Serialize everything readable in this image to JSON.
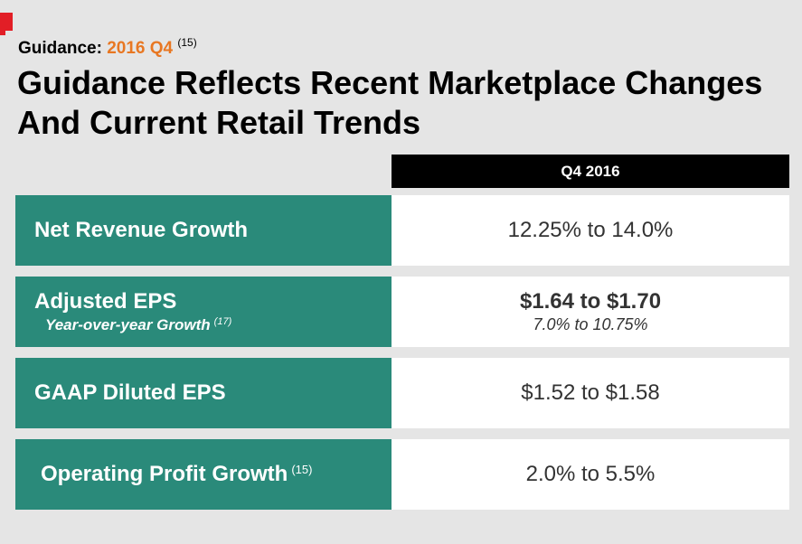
{
  "subtitle": {
    "prefix": "Guidance:",
    "period": "2016 Q4",
    "footnote": "(15)"
  },
  "title": "Guidance Reflects Recent Marketplace Changes And Current Retail Trends",
  "column_header": "Q4 2016",
  "colors": {
    "accent": "#e87722",
    "row_label_bg": "#2a8a7a",
    "header_bg": "#000000",
    "brand_red": "#e21e26"
  },
  "rows": [
    {
      "label": "Net Revenue Growth",
      "value": "12.25% to 14.0%"
    },
    {
      "label": "Adjusted EPS",
      "sublabel": "Year-over-year Growth",
      "sublabel_footnote": "(17)",
      "value": "$1.64 to $1.70",
      "subvalue": "7.0% to 10.75%"
    },
    {
      "label": "GAAP Diluted EPS",
      "value": "$1.52 to $1.58"
    },
    {
      "label": "Operating Profit Growth",
      "footnote": "(15)",
      "value": "2.0% to 5.5%"
    }
  ]
}
